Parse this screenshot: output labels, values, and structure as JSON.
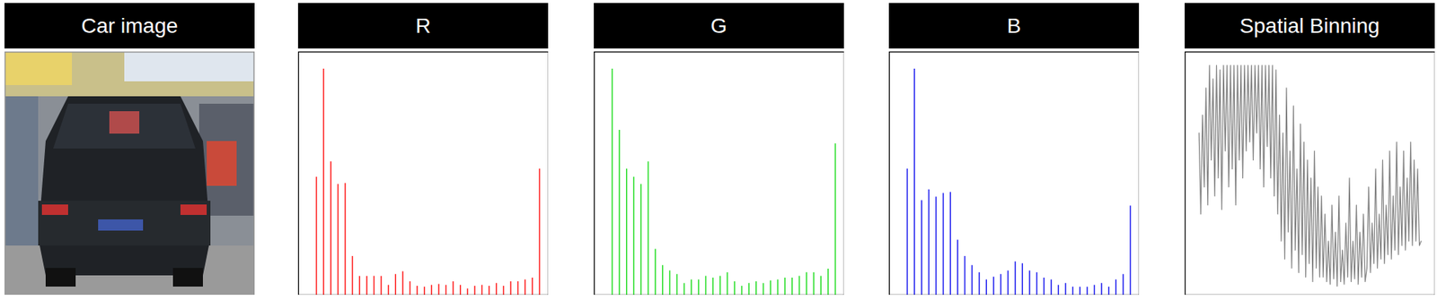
{
  "chart_data": [
    {
      "type": "image",
      "title": "Car image"
    },
    {
      "type": "histogram",
      "title": "R",
      "color": "#ff1a1a",
      "bins": [
        0,
        8,
        16,
        24,
        32,
        40,
        48,
        56,
        64,
        72,
        80,
        88,
        96,
        104,
        112,
        120,
        128,
        136,
        144,
        152,
        160,
        168,
        176,
        184,
        192,
        200,
        208,
        216,
        224,
        232,
        240,
        248,
        256
      ],
      "counts": [
        131,
        251,
        148,
        123,
        124,
        43,
        21,
        21,
        21,
        21,
        11,
        23,
        26,
        15,
        10,
        9,
        11,
        12,
        11,
        15,
        11,
        7,
        10,
        11,
        10,
        13,
        10,
        15,
        15,
        17,
        19,
        140
      ],
      "xlim": [
        -16,
        262
      ],
      "ylim": [
        0,
        270
      ],
      "tick_labels": false
    },
    {
      "type": "histogram",
      "title": "G",
      "color": "#22dd22",
      "bins": [
        0,
        8,
        16,
        24,
        32,
        40,
        48,
        56,
        64,
        72,
        80,
        88,
        96,
        104,
        112,
        120,
        128,
        136,
        144,
        152,
        160,
        168,
        176,
        184,
        192,
        200,
        208,
        216,
        224,
        232,
        240,
        248,
        256
      ],
      "counts": [
        251,
        183,
        140,
        131,
        123,
        148,
        51,
        33,
        27,
        23,
        13,
        17,
        17,
        21,
        19,
        21,
        25,
        15,
        10,
        13,
        15,
        13,
        16,
        17,
        19,
        19,
        21,
        25,
        25,
        21,
        29,
        168
      ],
      "xlim": [
        -16,
        262
      ],
      "ylim": [
        0,
        270
      ],
      "tick_labels": false
    },
    {
      "type": "histogram",
      "title": "B",
      "color": "#1a1aee",
      "bins": [
        0,
        8,
        16,
        24,
        32,
        40,
        48,
        56,
        64,
        72,
        80,
        88,
        96,
        104,
        112,
        120,
        128,
        136,
        144,
        152,
        160,
        168,
        176,
        184,
        192,
        200,
        208,
        216,
        224,
        232,
        240,
        248,
        256
      ],
      "counts": [
        140,
        251,
        105,
        117,
        109,
        113,
        114,
        61,
        43,
        33,
        25,
        17,
        20,
        23,
        27,
        37,
        35,
        27,
        25,
        19,
        17,
        11,
        13,
        9,
        9,
        9,
        11,
        13,
        9,
        17,
        23,
        99
      ],
      "xlim": [
        -16,
        262
      ],
      "ylim": [
        0,
        270
      ],
      "tick_labels": false
    },
    {
      "type": "line",
      "title": "Spatial Binning",
      "color": "#808080",
      "values": [
        180,
        90,
        200,
        120,
        230,
        100,
        255,
        150,
        240,
        110,
        255,
        130,
        250,
        95,
        255,
        160,
        255,
        120,
        255,
        140,
        255,
        100,
        255,
        150,
        255,
        130,
        255,
        160,
        255,
        170,
        255,
        150,
        255,
        180,
        255,
        140,
        255,
        120,
        255,
        165,
        255,
        130,
        255,
        110,
        250,
        90,
        200,
        60,
        180,
        40,
        230,
        70,
        160,
        30,
        210,
        50,
        140,
        25,
        190,
        45,
        170,
        20,
        150,
        35,
        130,
        15,
        160,
        30,
        120,
        20,
        110,
        20,
        90,
        15,
        60,
        12,
        100,
        18,
        70,
        10,
        110,
        15,
        50,
        12,
        80,
        20,
        130,
        15,
        60,
        18,
        100,
        12,
        70,
        20,
        90,
        15,
        30,
        120,
        25,
        80,
        35,
        140,
        30,
        90,
        40,
        150,
        35,
        100,
        45,
        160,
        40,
        110,
        50,
        170,
        45,
        120,
        55,
        160,
        50,
        130,
        60,
        170,
        55,
        150,
        60,
        140,
        55,
        60
      ],
      "xlim": [
        -8,
        135
      ],
      "ylim": [
        0,
        270
      ],
      "tick_labels": false
    }
  ]
}
